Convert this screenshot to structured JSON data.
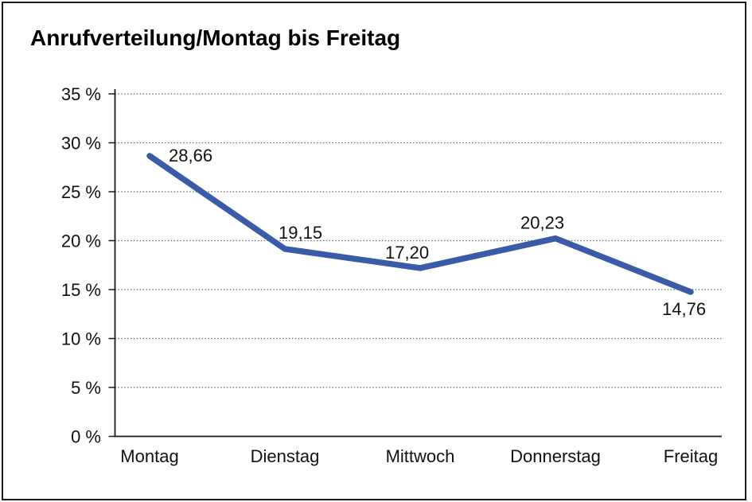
{
  "chart_data": {
    "type": "line",
    "title": "Anrufverteilung/Montag bis Freitag",
    "categories": [
      "Montag",
      "Dienstag",
      "Mittwoch",
      "Donnerstag",
      "Freitag"
    ],
    "series": [
      {
        "name": "Anrufverteilung",
        "values": [
          28.66,
          19.15,
          17.2,
          20.23,
          14.76
        ],
        "data_labels": [
          "28,66",
          "19,15",
          "17,20",
          "20,23",
          "14,76"
        ]
      }
    ],
    "xlabel": "",
    "ylabel": "",
    "ylim": [
      0,
      35
    ],
    "y_tick_step": 5,
    "y_tick_labels": [
      "0 %",
      "5 %",
      "10 %",
      "15 %",
      "20 %",
      "25 %",
      "30 %",
      "35 %"
    ],
    "grid": "horizontal-dotted",
    "legend_position": "none",
    "colors": {
      "series_line": "#3A5BA8",
      "axis": "#1a1a1a",
      "gridline": "#666666",
      "text": "#111111"
    }
  }
}
